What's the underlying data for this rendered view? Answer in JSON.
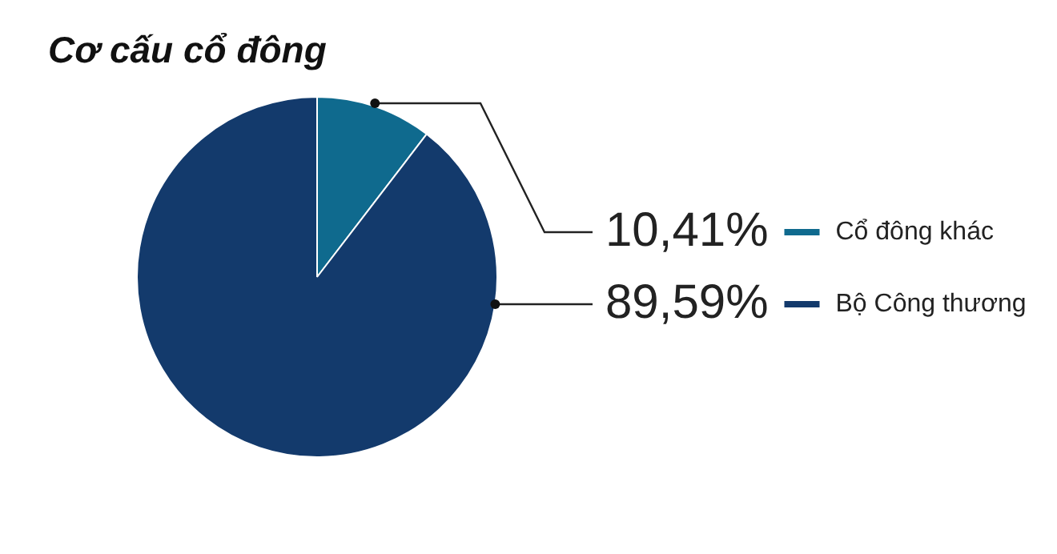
{
  "chart_data": {
    "type": "pie",
    "title": "Cơ cấu cổ đông",
    "categories": [
      "Cổ đông khác",
      "Bộ Công thương"
    ],
    "values": [
      10.41,
      89.59
    ],
    "colors": [
      "#0f6a8e",
      "#133a6c"
    ],
    "value_labels": [
      "10,41%",
      "89,59%"
    ],
    "legend": "right"
  }
}
